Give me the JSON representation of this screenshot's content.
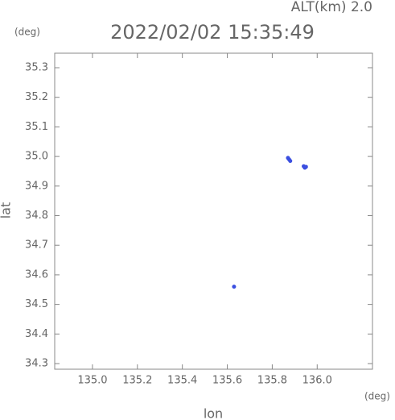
{
  "chart_data": {
    "type": "scatter",
    "title": "2022/02/02 15:35:49",
    "annotation": "ALT(km) 2.0",
    "y_unit": "(deg)",
    "x_unit": "(deg)",
    "xlabel": "lon",
    "ylabel": "lat",
    "xlim": [
      134.832,
      136.246
    ],
    "ylim": [
      34.281,
      35.349
    ],
    "xticks": [
      {
        "value": 135,
        "label": "135.0"
      },
      135.2,
      135.4,
      135.6,
      135.8,
      {
        "value": 136,
        "label": "136.0"
      }
    ],
    "yticks": [
      34.3,
      34.4,
      34.5,
      34.6,
      34.7,
      34.8,
      34.9,
      {
        "value": 35,
        "label": "35.0"
      },
      35.1,
      35.2,
      35.3
    ],
    "color": "#3b4fe0",
    "x": [
      135.87,
      135.875,
      135.88,
      135.94,
      135.945,
      135.95,
      135.63
    ],
    "values": [
      34.995,
      34.99,
      34.985,
      34.967,
      34.962,
      34.965,
      34.56
    ]
  }
}
